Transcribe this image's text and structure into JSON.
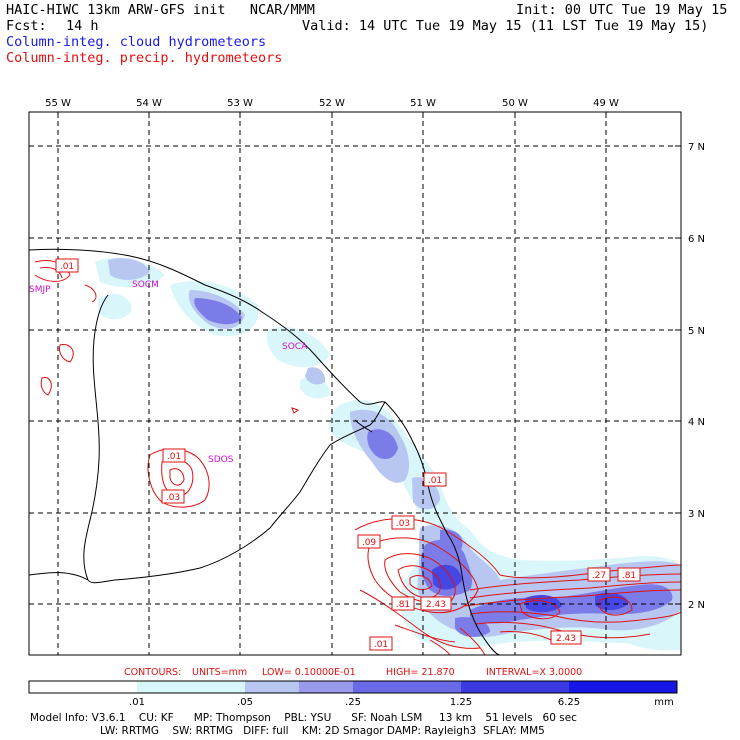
{
  "header": {
    "title": "HAIC-HIWC 13km ARW-GFS init   NCAR/MMM",
    "init": "Init: 00 UTC Tue 19 May 15",
    "fcst_label": "Fcst:",
    "fcst_value": "14 h",
    "valid": "Valid: 14 UTC Tue 19 May 15 (11 LST Tue 19 May 15)",
    "field_cloud": "Column-integ. cloud hydrometeors",
    "field_precip": "Column-integ. precip. hydrometeors"
  },
  "map": {
    "lon_labels": [
      "55 W",
      "54 W",
      "53 W",
      "52 W",
      "51 W",
      "50 W",
      "49 W"
    ],
    "lat_labels": [
      "7 N",
      "6 N",
      "5 N",
      "4 N",
      "3 N",
      "2 N"
    ],
    "stations": [
      "SMJP",
      "SOCM",
      "SOCA",
      "SDOS"
    ],
    "contour_labels": [
      ".01",
      ".01",
      ".03",
      ".01",
      ".03",
      ".09",
      ".81",
      "2.43",
      ".27",
      ".81",
      "2.43",
      ".01"
    ]
  },
  "contours_info": {
    "contours": "CONTOURS:",
    "units": "UNITS=mm",
    "low": "LOW= 0.10000E-01",
    "high": "HIGH=  21.870",
    "interval": "INTERVAL=X  3.0000"
  },
  "colorbar": {
    "ticks": [
      ".01",
      ".05",
      ".25",
      "1.25",
      "6.25"
    ],
    "unit": "mm",
    "colors": [
      "#ffffff",
      "#d9f6fb",
      "#b8c6f2",
      "#9a9aec",
      "#6a6ae8",
      "#3a3ae0",
      "#1616e6"
    ]
  },
  "footer": {
    "line1": "Model Info: V3.6.1    CU: KF      MP: Thompson    PBL: YSU      SF: Noah LSM     13 km    51 levels   60 sec",
    "line2": "LW: RRTMG    SW: RRTMG   DIFF: full    KM: 2D Smagor DAMP: Rayleigh3  SFLAY: MM5"
  }
}
